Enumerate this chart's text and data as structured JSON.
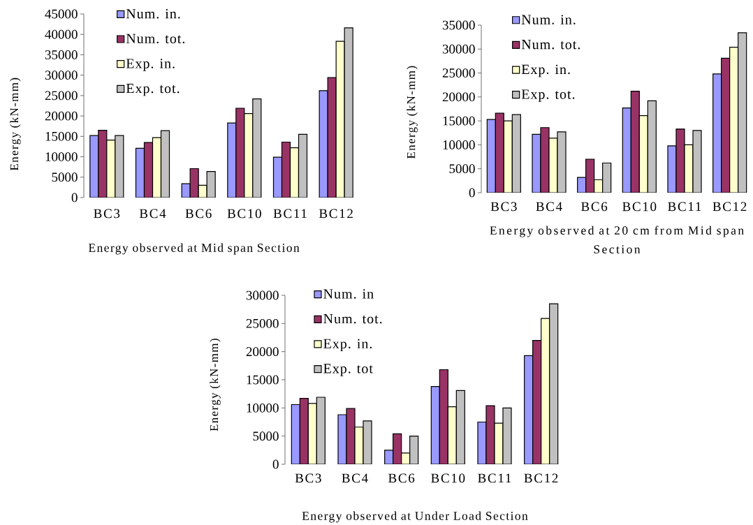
{
  "chart_data": [
    {
      "type": "bar",
      "xlabel": "Energy observed at Mid span Section",
      "ylabel": "Energy (kN-mm)",
      "categories": [
        "BC3",
        "BC4",
        "BC6",
        "BC10",
        "BC11",
        "BC12"
      ],
      "series": [
        {
          "name": "Num. in.",
          "color": "#9999ff",
          "values": [
            15200,
            12100,
            3400,
            18300,
            9900,
            26200
          ]
        },
        {
          "name": "Num. tot.",
          "color": "#993366",
          "values": [
            16500,
            13500,
            7100,
            21900,
            13600,
            29400
          ]
        },
        {
          "name": "Exp. in.",
          "color": "#ffffcc",
          "values": [
            14100,
            14700,
            3000,
            20600,
            12200,
            38300
          ]
        },
        {
          "name": "Exp. tot.",
          "color": "#c0c0c0",
          "values": [
            15200,
            16400,
            6400,
            24200,
            15500,
            41600
          ]
        }
      ],
      "ylim": [
        0,
        45000
      ],
      "yticks": [
        0,
        5000,
        10000,
        15000,
        20000,
        25000,
        30000,
        35000,
        40000,
        45000
      ],
      "legend": "top left"
    },
    {
      "type": "bar",
      "xlabel": "Energy observed at 20 cm from Mid span Section",
      "ylabel": "Energy (kN-mm)",
      "categories": [
        "BC3",
        "BC4",
        "BC6",
        "BC10",
        "BC11",
        "BC12"
      ],
      "series": [
        {
          "name": "Num. in.",
          "color": "#9999ff",
          "values": [
            15300,
            12200,
            3200,
            17700,
            9800,
            24800
          ]
        },
        {
          "name": "Num. tot.",
          "color": "#993366",
          "values": [
            16600,
            13600,
            7000,
            21200,
            13300,
            28100
          ]
        },
        {
          "name": "Exp. in.",
          "color": "#ffffcc",
          "values": [
            15000,
            11400,
            2700,
            16100,
            10000,
            30400
          ]
        },
        {
          "name": "Exp. tot.",
          "color": "#c0c0c0",
          "values": [
            16300,
            12700,
            6200,
            19200,
            13000,
            33400
          ]
        }
      ],
      "ylim": [
        0,
        35000
      ],
      "yticks": [
        0,
        5000,
        10000,
        15000,
        20000,
        25000,
        30000,
        35000
      ],
      "legend": "top left"
    },
    {
      "type": "bar",
      "xlabel": "Energy observed at Under Load Section",
      "ylabel": "Energy (kN-mm)",
      "categories": [
        "BC3",
        "BC4",
        "BC6",
        "BC10",
        "BC11",
        "BC12"
      ],
      "series": [
        {
          "name": "Num. in",
          "color": "#9999ff",
          "values": [
            10600,
            8800,
            2500,
            13800,
            7500,
            19300
          ]
        },
        {
          "name": "Num. tot.",
          "color": "#993366",
          "values": [
            11700,
            9900,
            5400,
            16800,
            10400,
            22000
          ]
        },
        {
          "name": "Exp. in.",
          "color": "#ffffcc",
          "values": [
            10800,
            6600,
            2000,
            10200,
            7300,
            25900
          ]
        },
        {
          "name": "Exp. tot",
          "color": "#c0c0c0",
          "values": [
            11900,
            7700,
            5000,
            13100,
            10000,
            28500
          ]
        }
      ],
      "ylim": [
        0,
        30000
      ],
      "yticks": [
        0,
        5000,
        10000,
        15000,
        20000,
        25000,
        30000
      ],
      "legend": "top left"
    }
  ]
}
